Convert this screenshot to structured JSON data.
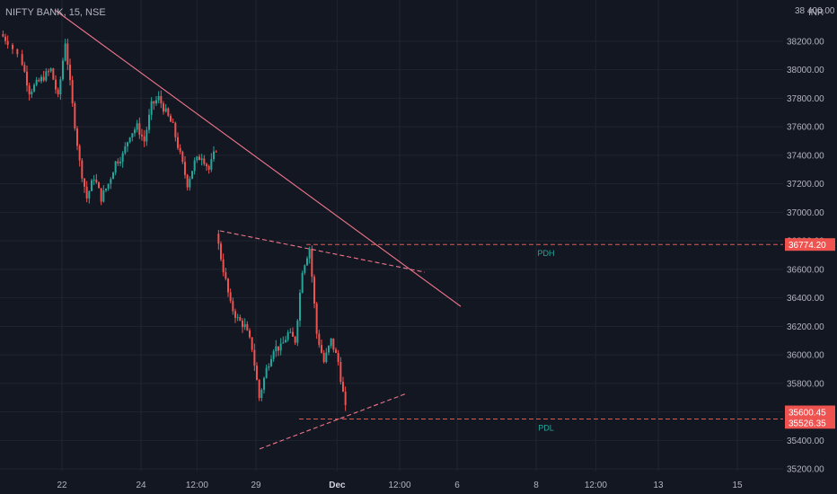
{
  "header": {
    "symbol": "NIFTY BANK",
    "interval": "15",
    "exchange": "NSE",
    "currency": "INR"
  },
  "colors": {
    "background": "#131722",
    "grid": "#1f2430",
    "text": "#b2b5be",
    "up_candle": "#26a69a",
    "down_candle": "#ef5350",
    "trendline": "#f0758a",
    "level_line": "#ef5350",
    "level_label_bg": "#ef5350",
    "level_text": "#26a69a"
  },
  "chart_data": {
    "type": "candlestick",
    "title": "NIFTY BANK, 15, NSE",
    "y_axis": {
      "range": [
        35150,
        38420
      ],
      "ticks": [
        35200,
        35400,
        35600,
        35800,
        36000,
        36200,
        36400,
        36600,
        36800,
        37000,
        37200,
        37400,
        37600,
        37800,
        38000,
        38200
      ],
      "tick_labels": [
        "35200.00",
        "35400.00",
        "35600.00",
        "35800.00",
        "36000.00",
        "36200.00",
        "36400.00",
        "36600.00",
        "36800.00",
        "37000.00",
        "37200.00",
        "37400.00",
        "37600.00",
        "37800.00",
        "38000.00",
        "38200.00"
      ],
      "top_label": "38 400.00"
    },
    "x_axis": {
      "ticks": [
        {
          "idx": 8.5,
          "label": "22"
        },
        {
          "idx": 19.5,
          "label": "24"
        },
        {
          "idx": 27.3,
          "label": "12:00"
        },
        {
          "idx": 35.5,
          "label": "29"
        },
        {
          "idx": 46.8,
          "label": "Dec",
          "bold": true
        },
        {
          "idx": 55.5,
          "label": "12:00"
        },
        {
          "idx": 63.5,
          "label": "6"
        },
        {
          "idx": 74.5,
          "label": "8"
        },
        {
          "idx": 82.8,
          "label": "12:00"
        },
        {
          "idx": 91.5,
          "label": "13"
        },
        {
          "idx": 102.5,
          "label": "15"
        }
      ],
      "range_idx": [
        0,
        108
      ]
    },
    "candles_seed": {
      "segments": [
        {
          "points": [
            [
              0,
              38250
            ],
            [
              1,
              38200
            ],
            [
              3,
              38050
            ],
            [
              4,
              37850
            ],
            [
              5,
              37900
            ],
            [
              6,
              37950
            ],
            [
              7,
              38000
            ],
            [
              8,
              37800
            ],
            [
              9,
              38200
            ],
            [
              10,
              37750
            ],
            [
              11,
              37350
            ],
            [
              12,
              37100
            ],
            [
              13,
              37250
            ],
            [
              14,
              37100
            ],
            [
              15,
              37200
            ],
            [
              16,
              37350
            ],
            [
              17,
              37400
            ],
            [
              18,
              37550
            ],
            [
              19,
              37600
            ],
            [
              20,
              37500
            ],
            [
              21,
              37750
            ],
            [
              22,
              37800
            ],
            [
              23,
              37700
            ],
            [
              24,
              37600
            ],
            [
              25,
              37400
            ],
            [
              26,
              37200
            ],
            [
              27,
              37350
            ],
            [
              28,
              37400
            ],
            [
              29,
              37300
            ],
            [
              30,
              37450
            ]
          ]
        },
        {
          "points": [
            [
              30,
              36850
            ],
            [
              31,
              36600
            ],
            [
              32,
              36350
            ],
            [
              33,
              36250
            ],
            [
              34,
              36200
            ],
            [
              35,
              36050
            ],
            [
              36,
              35700
            ],
            [
              37,
              35900
            ],
            [
              38,
              36050
            ],
            [
              39,
              36050
            ],
            [
              40,
              36150
            ],
            [
              41,
              36100
            ],
            [
              42,
              36600
            ],
            [
              43,
              36750
            ],
            [
              44,
              36150
            ],
            [
              45,
              35950
            ],
            [
              46,
              36100
            ],
            [
              47,
              35950
            ],
            [
              48,
              35620
            ]
          ]
        }
      ]
    },
    "trendlines": [
      {
        "from": [
          7.5,
          38420
        ],
        "to": [
          64,
          36340
        ]
      },
      {
        "from": [
          30.5,
          36870
        ],
        "to": [
          59,
          36580
        ],
        "dashed": true
      },
      {
        "from": [
          36,
          35340
        ],
        "to": [
          56.5,
          35730
        ],
        "dashed": true
      }
    ],
    "horizontal_levels": [
      {
        "value": 36774.2,
        "label": "36774.20",
        "from_idx": 42.5,
        "text": "PDH"
      },
      {
        "value": 35550,
        "label": "",
        "from_idx": 41.5,
        "text": "PDL"
      }
    ],
    "price_labels": [
      {
        "value": 35600.45,
        "label": "35600.45"
      },
      {
        "value": 35526.35,
        "label": "35526.35"
      }
    ],
    "level_texts": [
      "PDH",
      "PDL"
    ]
  }
}
